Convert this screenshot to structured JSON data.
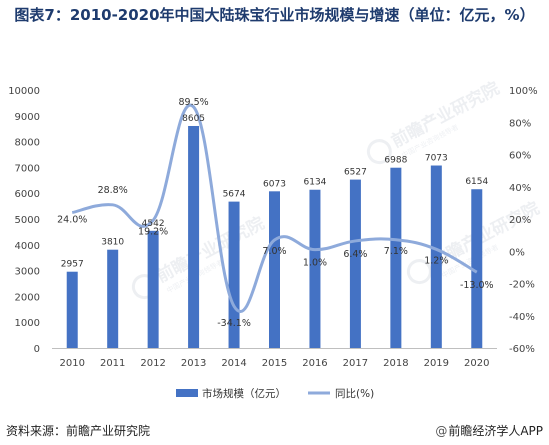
{
  "title": "图表7：2010-2020年中国大陆珠宝行业市场规模与增速（单位：亿元，%）",
  "footer": {
    "source": "资料来源：前瞻产业研究院",
    "brand": "前瞻经济学人APP",
    "brand_icon": "at-icon"
  },
  "watermark": {
    "text": "前瞻产业研究院",
    "subtext": "中国产业咨询领导者"
  },
  "colors": {
    "bar": "#4472c4",
    "line": "#8eaadb",
    "title": "#1e3b6e",
    "grid": "#e6e6e6"
  },
  "chart_data": {
    "type": "bar",
    "categories": [
      "2010",
      "2011",
      "2012",
      "2013",
      "2014",
      "2015",
      "2016",
      "2017",
      "2018",
      "2019",
      "2020"
    ],
    "series": [
      {
        "name": "市场规模（亿元）",
        "type": "bar",
        "axis": "left",
        "values": [
          2957,
          3810,
          4542,
          8605,
          5674,
          6073,
          6134,
          6527,
          6988,
          7073,
          6154
        ],
        "labels": [
          "2957",
          "3810",
          "4542",
          "8605",
          "5674",
          "6073",
          "6134",
          "6527",
          "6988",
          "7073",
          "6154"
        ]
      },
      {
        "name": "同比(%)",
        "type": "line",
        "axis": "right",
        "smooth": true,
        "values": [
          24.0,
          28.8,
          19.2,
          89.5,
          -34.1,
          7.0,
          1.0,
          6.4,
          7.1,
          1.2,
          -13.0
        ],
        "labels": [
          "24.0%",
          "28.8%",
          "19.2%",
          "89.5%",
          "-34.1%",
          "7.0%",
          "1.0%",
          "6.4%",
          "7.1%",
          "1.2%",
          "-13.0%"
        ]
      }
    ],
    "y_left": {
      "min": 0,
      "max": 10000,
      "ticks": [
        "0",
        "1000",
        "2000",
        "3000",
        "4000",
        "5000",
        "6000",
        "7000",
        "8000",
        "9000",
        "10000"
      ]
    },
    "y_right": {
      "min": -60,
      "max": 100,
      "ticks": [
        "-60%",
        "-40%",
        "-20%",
        "0%",
        "20%",
        "40%",
        "60%",
        "80%",
        "100%"
      ]
    },
    "grid": false,
    "legend_position": "bottom"
  }
}
